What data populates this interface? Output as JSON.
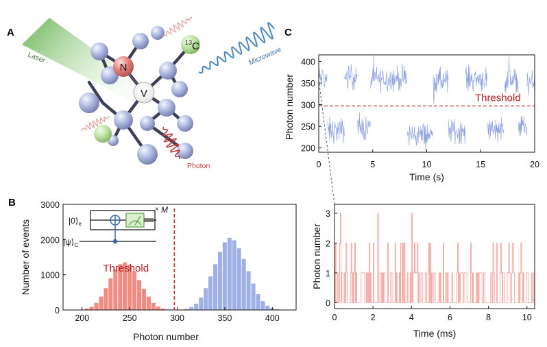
{
  "panels": {
    "a": {
      "letter": "A",
      "labels": {
        "laser": "Laser",
        "microwave": "Microwave",
        "photon": "Photon",
        "nitrogen": "N",
        "vacancy": "V",
        "carbon13_sup": "13",
        "carbon13": "C"
      },
      "colors": {
        "laser": "#7cc46a",
        "microwave": "#4a86c0",
        "photon": "#c0393b",
        "atom": "#a9b3dc",
        "nitrogen": "#e07a78",
        "carbon13": "#b6dd9e"
      }
    },
    "b": {
      "letter": "B"
    },
    "c": {
      "letter": "C"
    }
  },
  "inset": {
    "ket_e": "|0⟩",
    "ket_e_sub": "e",
    "ket_c": "|ψ⟩",
    "ket_c_sub": "C",
    "measure_label": "M"
  },
  "chart_data": [
    {
      "id": "histogram",
      "type": "bar",
      "xlabel": "Photon number",
      "ylabel": "Number of events",
      "xlim": [
        180,
        425
      ],
      "ylim": [
        0,
        3000
      ],
      "xticks": [
        200,
        250,
        300,
        350,
        400
      ],
      "yticks": [
        0,
        1000,
        2000,
        3000
      ],
      "bin_width": 5,
      "threshold": 297,
      "threshold_label": "Threshold",
      "series": [
        {
          "color": "#f08c84",
          "x": [
            200,
            205,
            210,
            215,
            220,
            225,
            230,
            235,
            240,
            245,
            250,
            255,
            260,
            265,
            270,
            275,
            280,
            285,
            290,
            295
          ],
          "values": [
            10,
            40,
            90,
            200,
            380,
            620,
            900,
            1150,
            1300,
            1350,
            1280,
            1100,
            850,
            600,
            380,
            200,
            100,
            40,
            15,
            5
          ]
        },
        {
          "color": "#9eb0e6",
          "x": [
            305,
            310,
            315,
            320,
            325,
            330,
            335,
            340,
            345,
            350,
            355,
            360,
            365,
            370,
            375,
            380,
            385,
            390,
            395,
            400,
            405,
            410,
            415
          ],
          "values": [
            10,
            30,
            80,
            180,
            350,
            620,
            950,
            1300,
            1650,
            1920,
            2050,
            1980,
            1750,
            1450,
            1100,
            750,
            450,
            250,
            120,
            50,
            20,
            8,
            3
          ]
        }
      ]
    },
    {
      "id": "trace-seconds",
      "type": "line",
      "xlabel": "Time (s)",
      "ylabel": "Photon number",
      "xlim": [
        0,
        20
      ],
      "ylim": [
        190,
        415
      ],
      "xticks": [
        0,
        5,
        10,
        15,
        20
      ],
      "yticks": [
        200,
        250,
        300,
        350,
        400
      ],
      "threshold": 297,
      "threshold_label": "Threshold",
      "color": "#8fa3e0",
      "segments": [
        {
          "t0": 0,
          "t1": 0.8,
          "level": 360
        },
        {
          "t0": 0.8,
          "t1": 2.4,
          "level": 240
        },
        {
          "t0": 2.4,
          "t1": 3.6,
          "level": 365
        },
        {
          "t0": 3.6,
          "t1": 4.8,
          "level": 245
        },
        {
          "t0": 4.8,
          "t1": 8.2,
          "level": 360
        },
        {
          "t0": 8.2,
          "t1": 10.6,
          "level": 230
        },
        {
          "t0": 10.6,
          "t1": 12.0,
          "level": 355
        },
        {
          "t0": 12.0,
          "t1": 13.6,
          "level": 240
        },
        {
          "t0": 13.6,
          "t1": 15.6,
          "level": 360
        },
        {
          "t0": 15.6,
          "t1": 17.2,
          "level": 245
        },
        {
          "t0": 17.2,
          "t1": 18.5,
          "level": 355
        },
        {
          "t0": 18.5,
          "t1": 19.3,
          "level": 250
        },
        {
          "t0": 19.3,
          "t1": 20,
          "level": 350
        }
      ]
    },
    {
      "id": "trace-milliseconds",
      "type": "line",
      "xlabel": "Time (ms)",
      "ylabel": "Photon number",
      "xlim": [
        0,
        10.4
      ],
      "ylim": [
        -0.2,
        3.3
      ],
      "xticks": [
        0,
        2,
        4,
        6,
        8,
        10
      ],
      "yticks": [
        0,
        1,
        2,
        3
      ],
      "color": "#f08c84"
    }
  ]
}
